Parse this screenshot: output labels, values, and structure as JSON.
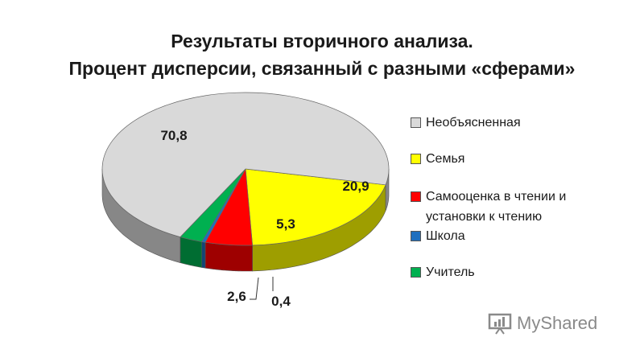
{
  "title": {
    "line1": "Результаты вторичного анализа.",
    "line2": "Процент дисперсии, связанный с разными «сферами»"
  },
  "chart_data": {
    "type": "pie",
    "style": "3d",
    "categories": [
      "Необъясненная",
      "Семья",
      "Самооценка в чтении и установки к чтению",
      "Школа",
      "Учитель"
    ],
    "values": [
      70.8,
      20.9,
      5.3,
      0.4,
      2.6
    ],
    "labels": [
      "70,8",
      "20,9",
      "5,3",
      "0,4",
      "2,6"
    ],
    "colors": [
      "#d9d9d9",
      "#ffff00",
      "#ff0000",
      "#1f6fbf",
      "#00b050"
    ],
    "legend_position": "right"
  },
  "legend": {
    "items": [
      {
        "label": "Необъясненная",
        "color": "#d9d9d9"
      },
      {
        "label": "Семья",
        "color": "#ffff00"
      },
      {
        "label": "Самооценка в чтении и установки к чтению",
        "color": "#ff0000"
      },
      {
        "label": "Школа",
        "color": "#1f6fbf"
      },
      {
        "label": "Учитель",
        "color": "#00b050"
      }
    ]
  },
  "watermark": {
    "text": "MyShared"
  }
}
